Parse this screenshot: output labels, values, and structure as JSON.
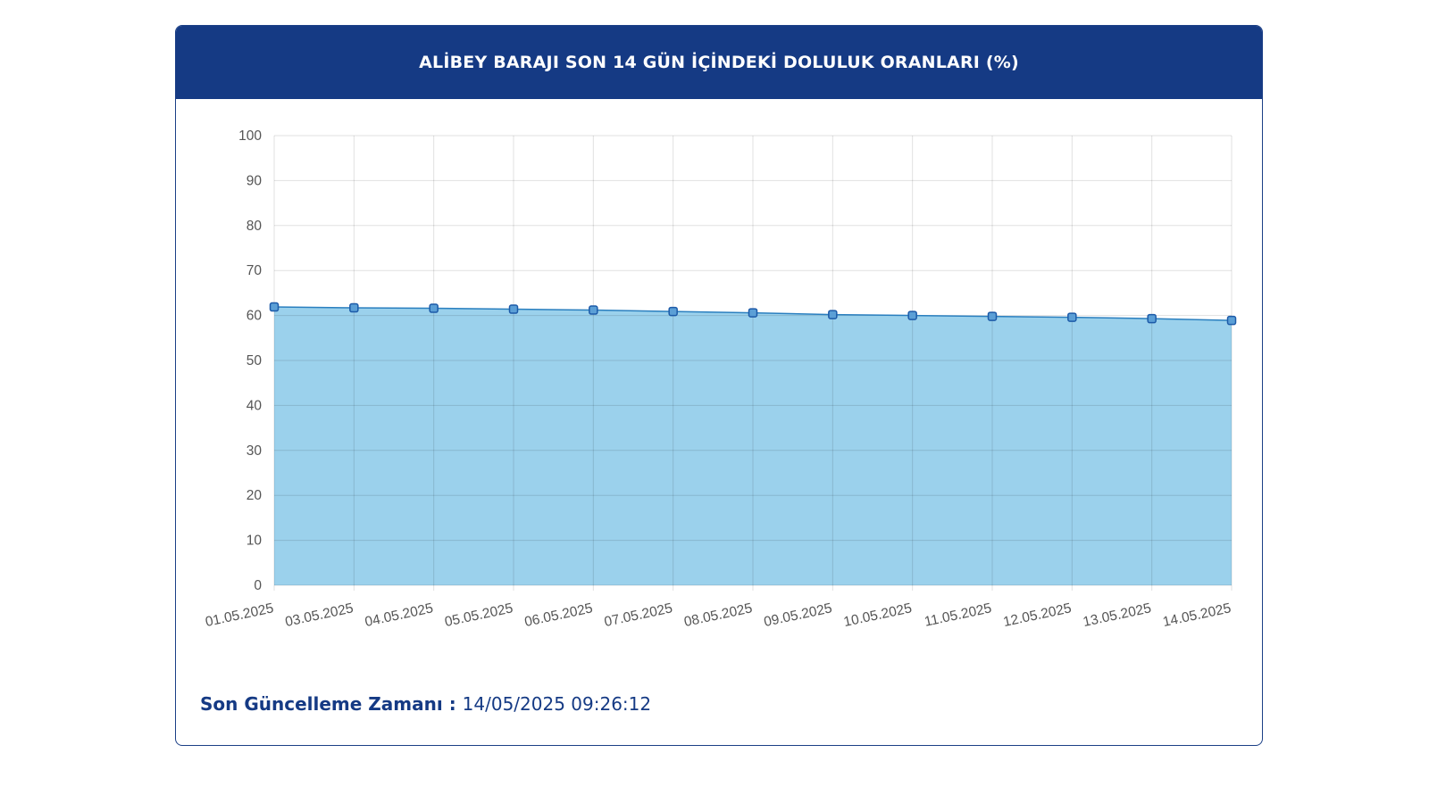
{
  "header": {
    "title": "ALİBEY BARAJI SON 14 GÜN İÇİNDEKİ DOLULUK ORANLARI (%)"
  },
  "footer": {
    "update_label": "Son Güncelleme Zamanı : ",
    "update_value": "14/05/2025 09:26:12"
  },
  "colors": {
    "header_bg": "#153a84",
    "area_fill": "#9bd1ec",
    "line": "#2a7fbf",
    "point_fill": "#5b9fd6",
    "point_stroke": "#1c5aa8"
  },
  "chart_data": {
    "type": "area",
    "categories": [
      "01.05.2025",
      "03.05.2025",
      "04.05.2025",
      "05.05.2025",
      "06.05.2025",
      "07.05.2025",
      "08.05.2025",
      "09.05.2025",
      "10.05.2025",
      "11.05.2025",
      "12.05.2025",
      "13.05.2025",
      "14.05.2025"
    ],
    "values": [
      61.9,
      61.7,
      61.6,
      61.4,
      61.2,
      60.9,
      60.6,
      60.2,
      60.0,
      59.8,
      59.6,
      59.3,
      58.9
    ],
    "ylim": [
      0,
      100
    ],
    "yticks": [
      0,
      10,
      20,
      30,
      40,
      50,
      60,
      70,
      80,
      90,
      100
    ],
    "grid": true,
    "title": "",
    "xlabel": "",
    "ylabel": ""
  }
}
